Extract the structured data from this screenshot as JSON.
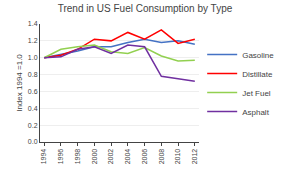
{
  "chart_data": {
    "type": "line",
    "title": "Trend in US Fuel Consumption by Type",
    "y_label": "Index 1994 =1.0",
    "x": [
      1994,
      1996,
      1998,
      2000,
      2002,
      2004,
      2006,
      2008,
      2010,
      2012
    ],
    "series": [
      {
        "name": "Gasoline",
        "color": "#4472C4",
        "values": [
          1.0,
          1.04,
          1.08,
          1.13,
          1.13,
          1.18,
          1.22,
          1.18,
          1.2,
          1.16
        ]
      },
      {
        "name": "Distillate",
        "color": "#FF0000",
        "values": [
          1.0,
          1.03,
          1.1,
          1.22,
          1.2,
          1.3,
          1.22,
          1.33,
          1.17,
          1.22
        ]
      },
      {
        "name": "Jet Fuel",
        "color": "#92D050",
        "values": [
          1.0,
          1.1,
          1.13,
          1.15,
          1.07,
          1.05,
          1.12,
          1.02,
          0.96,
          0.97
        ]
      },
      {
        "name": "Asphalt",
        "color": "#7030A0",
        "values": [
          1.0,
          1.01,
          1.1,
          1.13,
          1.05,
          1.15,
          1.13,
          0.78,
          0.75,
          0.72
        ]
      }
    ],
    "xlim": [
      1993.5,
      2012.5
    ],
    "xticks": [
      1994,
      1996,
      1998,
      2000,
      2002,
      2004,
      2006,
      2008,
      2010,
      2012
    ],
    "ylim": [
      0.0,
      1.4
    ],
    "yticks": [
      {
        "value": 0.0,
        "label": "0.0"
      },
      0.2,
      0.4,
      0.6,
      0.8,
      {
        "value": 1.0,
        "label": "1.0"
      },
      1.2,
      1.4
    ],
    "grid": true,
    "legend": "right"
  }
}
